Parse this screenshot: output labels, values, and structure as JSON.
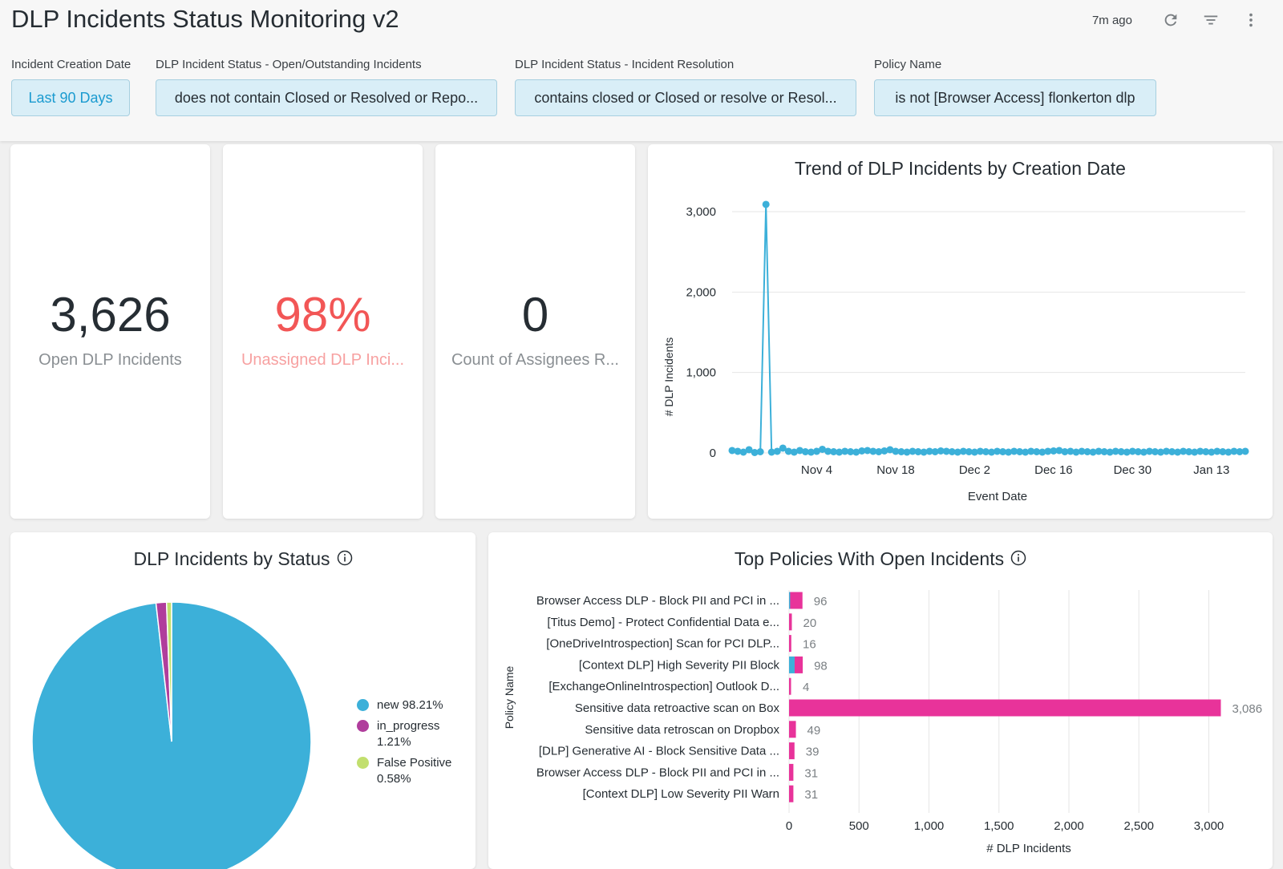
{
  "header": {
    "title": "DLP Incidents Status Monitoring v2",
    "updated": "7m ago",
    "icons": [
      "refresh-icon",
      "filter-icon",
      "more-vertical-icon"
    ]
  },
  "filters": [
    {
      "label": "Incident Creation Date",
      "value": "Last 90 Days"
    },
    {
      "label": "DLP Incident Status - Open/Outstanding Incidents",
      "value": "does not contain Closed or Resolved or Repo..."
    },
    {
      "label": "DLP Incident Status - Incident Resolution",
      "value": "contains closed or Closed or resolve or Resol..."
    },
    {
      "label": "Policy Name",
      "value": "is not [Browser Access] flonkerton dlp"
    }
  ],
  "kpis": [
    {
      "value": "3,626",
      "label": "Open DLP Incidents"
    },
    {
      "value": "98%",
      "label": "Unassigned DLP Inci..."
    },
    {
      "value": "0",
      "label": "Count of Assignees R..."
    }
  ],
  "colors": {
    "blue": "#3cb0d9",
    "purple": "#b03d9c",
    "lime": "#c2df6e",
    "magenta": "#e8339a",
    "kpi_red": "#f25656"
  },
  "chart_data": [
    {
      "type": "line",
      "title": "Trend of DLP Incidents by Creation Date",
      "xlabel": "Event Date",
      "ylabel": "# DLP Incidents",
      "x_ticks": [
        "Nov 4",
        "Nov 18",
        "Dec 2",
        "Dec 16",
        "Dec 30",
        "Jan 13"
      ],
      "y_ticks": [
        "0",
        "1,000",
        "2,000",
        "3,000"
      ],
      "ylim": [
        0,
        3000
      ],
      "grid": true,
      "x": [
        "2023-10-20",
        "2023-10-21",
        "2023-10-22",
        "2023-10-23",
        "2023-10-24",
        "2023-10-25",
        "2023-10-26",
        "2023-10-27",
        "2023-10-28",
        "2023-10-29",
        "2023-10-30",
        "2023-10-31",
        "2023-11-01",
        "2023-11-02",
        "2023-11-03",
        "2023-11-04",
        "2023-11-05",
        "2023-11-06",
        "2023-11-07",
        "2023-11-08",
        "2023-11-09",
        "2023-11-10",
        "2023-11-11",
        "2023-11-12",
        "2023-11-13",
        "2023-11-14",
        "2023-11-15",
        "2023-11-16",
        "2023-11-17",
        "2023-11-18",
        "2023-11-19",
        "2023-11-20",
        "2023-11-21",
        "2023-11-22",
        "2023-11-23",
        "2023-11-24",
        "2023-11-25",
        "2023-11-26",
        "2023-11-27",
        "2023-11-28",
        "2023-11-29",
        "2023-11-30",
        "2023-12-01",
        "2023-12-02",
        "2023-12-03",
        "2023-12-04",
        "2023-12-05",
        "2023-12-06",
        "2023-12-07",
        "2023-12-08",
        "2023-12-09",
        "2023-12-10",
        "2023-12-11",
        "2023-12-12",
        "2023-12-13",
        "2023-12-14",
        "2023-12-15",
        "2023-12-16",
        "2023-12-17",
        "2023-12-18",
        "2023-12-19",
        "2023-12-20",
        "2023-12-21",
        "2023-12-22",
        "2023-12-23",
        "2023-12-24",
        "2023-12-25",
        "2023-12-26",
        "2023-12-27",
        "2023-12-28",
        "2023-12-29",
        "2023-12-30",
        "2023-12-31",
        "2024-01-01",
        "2024-01-02",
        "2024-01-03",
        "2024-01-04",
        "2024-01-05",
        "2024-01-06",
        "2024-01-07",
        "2024-01-08",
        "2024-01-09",
        "2024-01-10",
        "2024-01-11",
        "2024-01-12",
        "2024-01-13",
        "2024-01-14",
        "2024-01-15",
        "2024-01-16",
        "2024-01-17",
        "2024-01-18",
        "2024-01-19"
      ],
      "values": [
        30,
        20,
        10,
        40,
        5,
        15,
        3090,
        10,
        20,
        60,
        20,
        10,
        30,
        15,
        10,
        20,
        45,
        20,
        15,
        10,
        20,
        15,
        10,
        25,
        30,
        20,
        15,
        25,
        40,
        20,
        15,
        10,
        20,
        15,
        10,
        20,
        15,
        25,
        20,
        15,
        10,
        20,
        15,
        10,
        20,
        15,
        10,
        20,
        15,
        10,
        20,
        15,
        10,
        20,
        15,
        10,
        20,
        25,
        30,
        15,
        20,
        10,
        20,
        15,
        10,
        20,
        15,
        10,
        20,
        15,
        10,
        20,
        15,
        10,
        20,
        15,
        10,
        20,
        15,
        10,
        20,
        15,
        10,
        20,
        15,
        10,
        20,
        15,
        10,
        20,
        15,
        20
      ]
    },
    {
      "type": "pie",
      "title": "DLP Incidents by Status",
      "labels": [
        "new",
        "in_progress",
        "False Positive"
      ],
      "values": [
        98.21,
        1.21,
        0.58
      ],
      "display_labels": [
        "new 98.21%",
        "in_progress",
        "1.21%",
        "False Positive",
        "0.58%"
      ],
      "legend_position": "right"
    },
    {
      "type": "bar",
      "orientation": "horizontal",
      "stacked": true,
      "title": "Top Policies With Open Incidents",
      "xlabel": "# DLP Incidents",
      "ylabel": "Policy Name",
      "xlim": [
        0,
        3300
      ],
      "x_ticks": [
        "0",
        "500",
        "1,000",
        "1,500",
        "2,000",
        "2,500",
        "3,000"
      ],
      "categories": [
        "Browser Access DLP - Block PII and PCI in ...",
        "[Titus Demo] - Protect Confidential Data e...",
        "[OneDriveIntrospection] Scan for PCI DLP...",
        "[Context DLP] High Severity PII Block",
        "[ExchangeOnlineIntrospection] Outlook D...",
        "Sensitive data retroactive scan on Box",
        "Sensitive data retroscan on Dropbox",
        "[DLP] Generative AI - Block Sensitive Data ...",
        "Browser Access DLP - Block PII and PCI in ...",
        "[Context DLP] Low Severity PII Warn"
      ],
      "series": [
        {
          "values": [
            8,
            0,
            0,
            40,
            0,
            0,
            0,
            0,
            0,
            0
          ]
        },
        {
          "values": [
            88,
            20,
            16,
            58,
            4,
            3086,
            49,
            39,
            31,
            31
          ]
        }
      ],
      "totals": [
        "96",
        "20",
        "16",
        "98",
        "4",
        "3,086",
        "49",
        "39",
        "31",
        "31"
      ]
    }
  ]
}
